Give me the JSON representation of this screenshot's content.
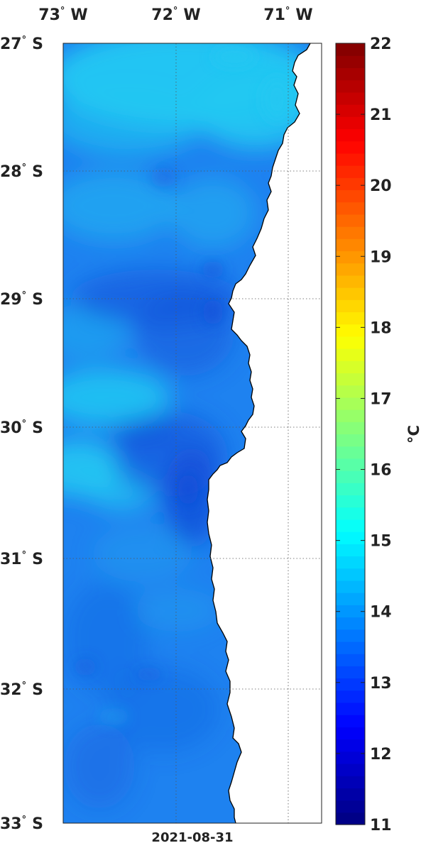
{
  "map": {
    "date": "2021-08-31",
    "lon_ticks": [
      {
        "deg": "73",
        "hemi": "W"
      },
      {
        "deg": "72",
        "hemi": "W"
      },
      {
        "deg": "71",
        "hemi": "W"
      }
    ],
    "lat_ticks": [
      {
        "deg": "27",
        "hemi": "S"
      },
      {
        "deg": "28",
        "hemi": "S"
      },
      {
        "deg": "29",
        "hemi": "S"
      },
      {
        "deg": "30",
        "hemi": "S"
      },
      {
        "deg": "31",
        "hemi": "S"
      },
      {
        "deg": "32",
        "hemi": "S"
      },
      {
        "deg": "33",
        "hemi": "S"
      }
    ],
    "degree_symbol": "°",
    "grid": true
  },
  "colorbar": {
    "unit": "°C",
    "min": 11,
    "max": 22,
    "ticks": [
      "11",
      "12",
      "13",
      "14",
      "15",
      "16",
      "17",
      "18",
      "19",
      "20",
      "21",
      "22"
    ],
    "colormap": "jet"
  },
  "colors": {
    "land": "#ffffff",
    "ocean_base": "#1e82f0",
    "ocean_warm": "#22c8f2",
    "ocean_cold": "#1450d8",
    "coast": "#000000"
  }
}
